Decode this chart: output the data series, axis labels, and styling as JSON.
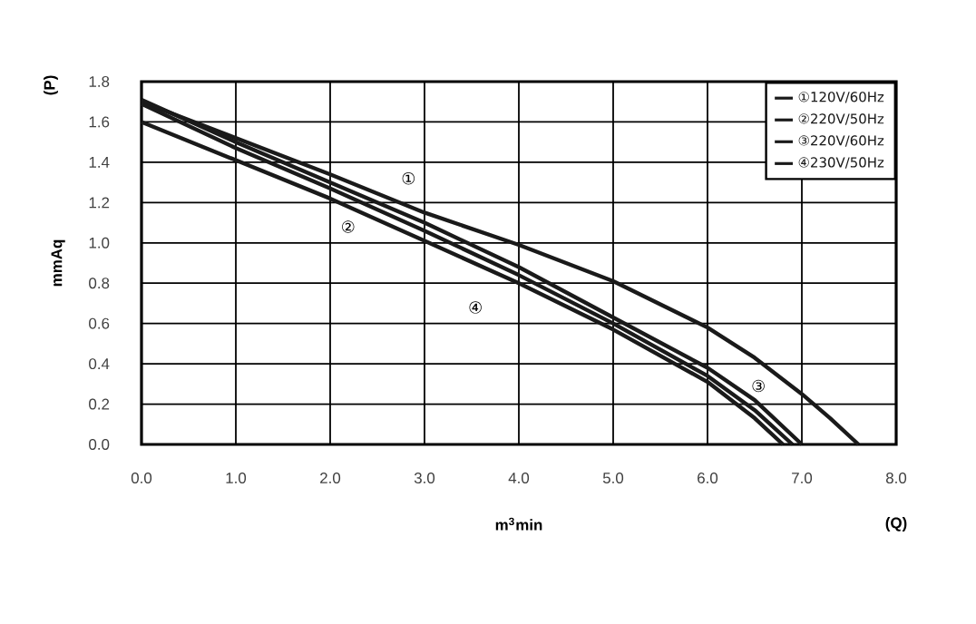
{
  "chart_data": {
    "type": "line",
    "xlabel": "m$^{3}$min",
    "ylabel": "mmAq",
    "xlim": [
      0,
      8
    ],
    "ylim": [
      0,
      1.8
    ],
    "xticks": [
      {
        "value": 0,
        "label": "0.0"
      },
      {
        "value": 1,
        "label": "1.0"
      },
      {
        "value": 2,
        "label": "2.0"
      },
      {
        "value": 3,
        "label": "3.0"
      },
      {
        "value": 4,
        "label": "4.0"
      },
      {
        "value": 5,
        "label": "5.0"
      },
      {
        "value": 6,
        "label": "6.0"
      },
      {
        "value": 7,
        "label": "7.0"
      },
      {
        "value": 8,
        "label": "8.0"
      }
    ],
    "yticks": [
      {
        "value": 0,
        "label": "0.0"
      },
      {
        "value": 0.2,
        "label": "0.2"
      },
      {
        "value": 0.4,
        "label": "0.4"
      },
      {
        "value": 0.6,
        "label": "0.6"
      },
      {
        "value": 0.8,
        "label": "0.8"
      },
      {
        "value": 1.0,
        "label": "1.0"
      },
      {
        "value": 1.2,
        "label": "1.2"
      },
      {
        "value": 1.4,
        "label": "1.4"
      },
      {
        "value": 1.6,
        "label": "1.6"
      },
      {
        "value": 1.8,
        "label": "1.8"
      }
    ],
    "grid": true,
    "legend": "top right",
    "marker": "none",
    "line_style": "solid",
    "series": [
      {
        "name": "①120V/60Hz",
        "color": "#1a1a1a",
        "x": [
          0,
          1,
          2,
          3,
          4,
          5,
          6,
          6.5,
          7,
          7.3,
          7.6
        ],
        "values": [
          1.7,
          1.52,
          1.34,
          1.15,
          0.99,
          0.81,
          0.58,
          0.43,
          0.25,
          0.13,
          0
        ]
      },
      {
        "name": "②220V/50Hz",
        "color": "#1a1a1a",
        "x": [
          0,
          1,
          2,
          3,
          4,
          5,
          6,
          6.5,
          6.8
        ],
        "values": [
          1.6,
          1.41,
          1.22,
          1.01,
          0.8,
          0.57,
          0.31,
          0.13,
          0
        ]
      },
      {
        "name": "③220V/60Hz",
        "color": "#1a1a1a",
        "x": [
          0,
          1,
          2,
          3,
          4,
          5,
          6,
          6.5,
          7.0
        ],
        "values": [
          1.71,
          1.5,
          1.3,
          1.1,
          0.88,
          0.63,
          0.38,
          0.22,
          0
        ]
      },
      {
        "name": "④230V/50Hz",
        "color": "#1a1a1a",
        "x": [
          0,
          1,
          2,
          3,
          4,
          5,
          6,
          6.5,
          6.9
        ],
        "values": [
          1.69,
          1.47,
          1.27,
          1.06,
          0.84,
          0.6,
          0.34,
          0.17,
          0
        ]
      }
    ],
    "annotations": [
      "(P)",
      "(Q)",
      {
        "text": "①",
        "x": 2.83,
        "y": 1.32
      },
      {
        "text": "②",
        "x": 2.19,
        "y": 1.08
      },
      {
        "text": "③",
        "x": 6.54,
        "y": 0.29
      },
      {
        "text": "④",
        "x": 3.54,
        "y": 0.68
      }
    ]
  }
}
